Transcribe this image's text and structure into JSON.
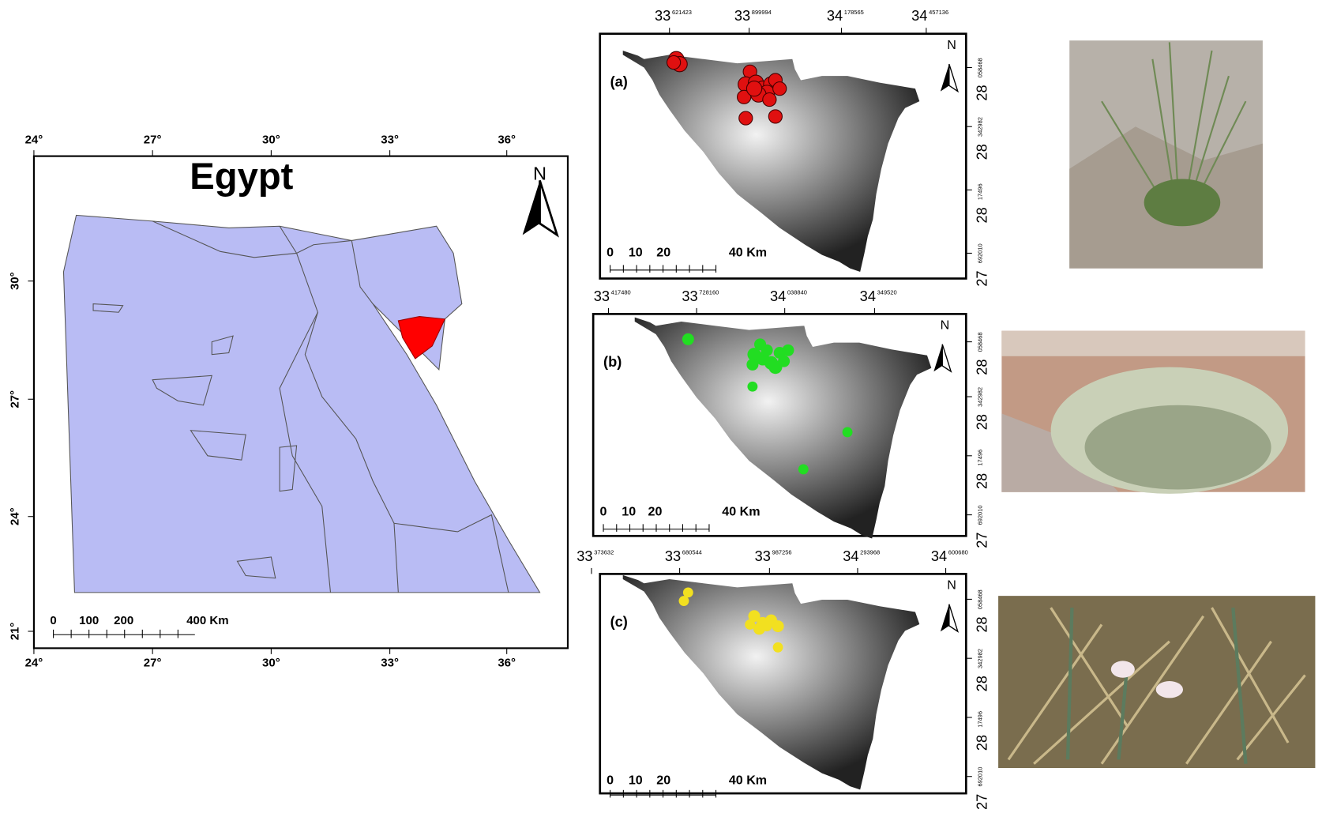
{
  "egypt_map": {
    "title": "Egypt",
    "north": "N",
    "top_ticks": [
      "24°",
      "27°",
      "30°",
      "33°",
      "36°"
    ],
    "bottom_ticks": [
      "24°",
      "27°",
      "30°",
      "33°",
      "36°"
    ],
    "left_ticks": [
      "30°",
      "27°",
      "24°",
      "21°"
    ],
    "scale_labels": [
      "0",
      "100",
      "200",
      "400 Km"
    ]
  },
  "panels": [
    {
      "label": "(a)",
      "north": "N",
      "top_ticks": [
        {
          "deg": "33",
          "minor": "621423"
        },
        {
          "deg": "33",
          "minor": "899994"
        },
        {
          "deg": "34",
          "minor": "178565"
        },
        {
          "deg": "34",
          "minor": "457136"
        }
      ],
      "right_ticks": [
        {
          "deg": "28",
          "minor": "058468"
        },
        {
          "deg": "28",
          "minor": "342982"
        },
        {
          "deg": "28",
          "minor": "17496"
        },
        {
          "deg": "27",
          "minor": "692010"
        }
      ],
      "scale_labels": [
        "0",
        "10",
        "20",
        "40 Km"
      ]
    },
    {
      "label": "(b)",
      "north": "N",
      "top_ticks": [
        {
          "deg": "33",
          "minor": "417480"
        },
        {
          "deg": "33",
          "minor": "728160"
        },
        {
          "deg": "34",
          "minor": "038840"
        },
        {
          "deg": "34",
          "minor": "349520"
        }
      ],
      "right_ticks": [
        {
          "deg": "28",
          "minor": "058468"
        },
        {
          "deg": "28",
          "minor": "342982"
        },
        {
          "deg": "28",
          "minor": "17496"
        },
        {
          "deg": "27",
          "minor": "692010"
        }
      ],
      "scale_labels": [
        "0",
        "10",
        "20",
        "40 Km"
      ]
    },
    {
      "label": "(c)",
      "north": "N",
      "top_ticks": [
        {
          "deg": "33",
          "minor": "373632"
        },
        {
          "deg": "33",
          "minor": "680544"
        },
        {
          "deg": "33",
          "minor": "987256"
        },
        {
          "deg": "34",
          "minor": "293968"
        },
        {
          "deg": "34",
          "minor": "600680"
        }
      ],
      "right_ticks": [
        {
          "deg": "28",
          "minor": "058468"
        },
        {
          "deg": "28",
          "minor": "342982"
        },
        {
          "deg": "28",
          "minor": "17496"
        },
        {
          "deg": "27",
          "minor": "692010"
        }
      ],
      "scale_labels": [
        "0",
        "10",
        "20",
        "40 Km"
      ]
    }
  ]
}
